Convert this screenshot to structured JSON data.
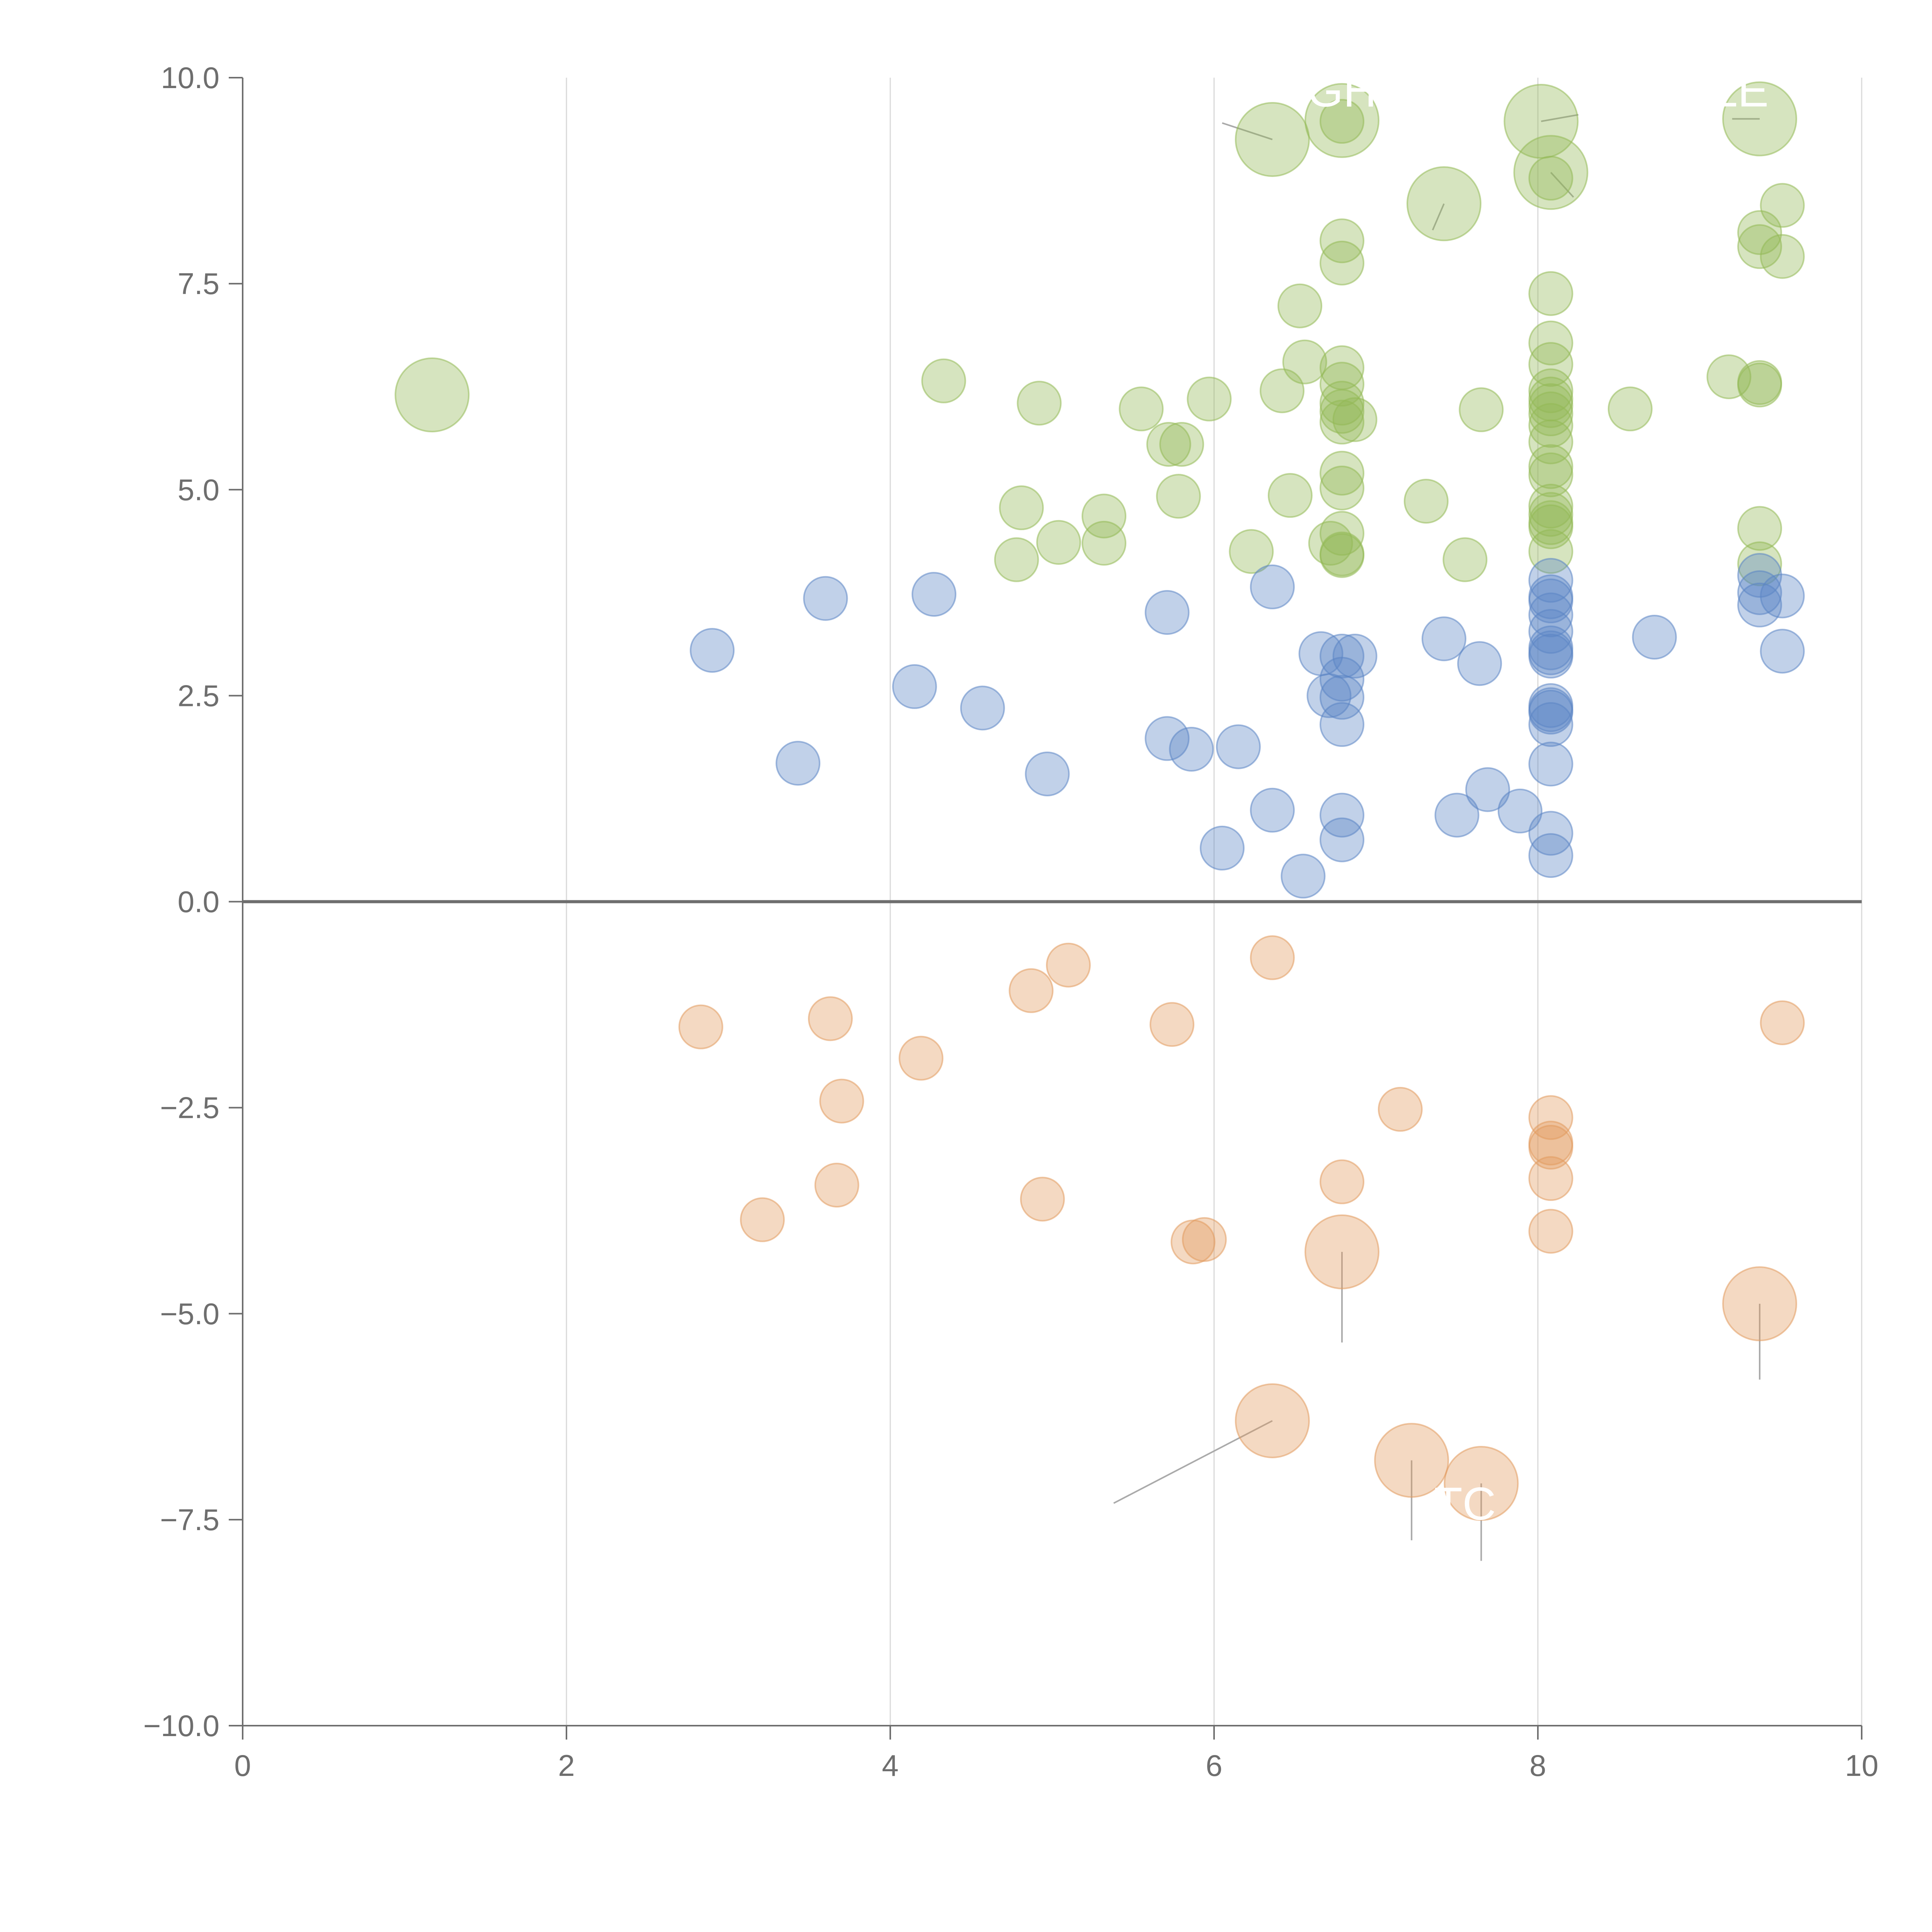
{
  "chart_data": {
    "type": "scatter",
    "title": "",
    "xlabel": "",
    "ylabel": "",
    "xlim": [
      0,
      10
    ],
    "ylim": [
      -10,
      10
    ],
    "x_ticks": [
      "0",
      "2",
      "4",
      "6",
      "8",
      "10"
    ],
    "y_ticks": [
      "10.0",
      "7.5",
      "5.0",
      "2.5",
      "0.0",
      "−2.5",
      "−5.0",
      "−7.5",
      "−10.0"
    ],
    "grid": "vertical lines at x ticks",
    "zero_line": 0,
    "colors": {
      "green": "#93b956",
      "blue": "#5b85c5",
      "orange": "#e29a5f",
      "axis": "#6e6e6e",
      "grid": "#d9d9d9",
      "leader": "#aaaaaa"
    },
    "series": [
      {
        "name": "green",
        "color": "#93b956",
        "points": [
          {
            "x": 1.17,
            "y": 6.15,
            "size": "large"
          },
          {
            "x": 4.33,
            "y": 6.32
          },
          {
            "x": 4.92,
            "y": 6.05
          },
          {
            "x": 5.55,
            "y": 5.98
          },
          {
            "x": 5.97,
            "y": 6.1
          },
          {
            "x": 5.72,
            "y": 5.55
          },
          {
            "x": 5.8,
            "y": 5.55
          },
          {
            "x": 4.81,
            "y": 4.78
          },
          {
            "x": 4.78,
            "y": 4.15
          },
          {
            "x": 5.04,
            "y": 4.36
          },
          {
            "x": 5.32,
            "y": 4.68
          },
          {
            "x": 5.32,
            "y": 4.35
          },
          {
            "x": 5.78,
            "y": 4.92
          },
          {
            "x": 6.23,
            "y": 4.25
          },
          {
            "x": 6.47,
            "y": 4.93
          },
          {
            "x": 6.42,
            "y": 6.2
          },
          {
            "x": 6.56,
            "y": 6.55
          },
          {
            "x": 6.53,
            "y": 7.23
          },
          {
            "x": 6.79,
            "y": 8.02
          },
          {
            "x": 6.79,
            "y": 7.75
          },
          {
            "x": 6.79,
            "y": 6.48
          },
          {
            "x": 6.79,
            "y": 6.28
          },
          {
            "x": 6.79,
            "y": 6.05
          },
          {
            "x": 6.79,
            "y": 5.95
          },
          {
            "x": 6.79,
            "y": 5.82
          },
          {
            "x": 6.87,
            "y": 5.85
          },
          {
            "x": 6.79,
            "y": 5.2
          },
          {
            "x": 6.79,
            "y": 5.02
          },
          {
            "x": 6.79,
            "y": 4.47
          },
          {
            "x": 6.72,
            "y": 4.35
          },
          {
            "x": 6.79,
            "y": 4.22
          },
          {
            "x": 6.79,
            "y": 4.2
          },
          {
            "x": 7.31,
            "y": 4.86
          },
          {
            "x": 7.55,
            "y": 4.15
          },
          {
            "x": 7.65,
            "y": 5.97
          },
          {
            "x": 8.08,
            "y": 7.38
          },
          {
            "x": 8.08,
            "y": 6.78
          },
          {
            "x": 8.08,
            "y": 6.52
          },
          {
            "x": 8.08,
            "y": 6.2
          },
          {
            "x": 8.08,
            "y": 6.1
          },
          {
            "x": 8.08,
            "y": 6.02
          },
          {
            "x": 8.08,
            "y": 5.92
          },
          {
            "x": 8.08,
            "y": 5.78
          },
          {
            "x": 8.08,
            "y": 5.58
          },
          {
            "x": 8.08,
            "y": 5.28
          },
          {
            "x": 8.08,
            "y": 5.18
          },
          {
            "x": 8.08,
            "y": 4.8
          },
          {
            "x": 8.08,
            "y": 4.7
          },
          {
            "x": 8.08,
            "y": 4.6
          },
          {
            "x": 8.08,
            "y": 4.55
          },
          {
            "x": 8.08,
            "y": 4.25
          },
          {
            "x": 8.08,
            "y": 8.78
          },
          {
            "x": 8.57,
            "y": 5.98
          },
          {
            "x": 9.18,
            "y": 6.37
          },
          {
            "x": 9.37,
            "y": 6.3
          },
          {
            "x": 9.37,
            "y": 6.27
          },
          {
            "x": 9.37,
            "y": 8.12
          },
          {
            "x": 9.37,
            "y": 7.95
          },
          {
            "x": 9.51,
            "y": 8.45
          },
          {
            "x": 9.51,
            "y": 7.83
          },
          {
            "x": 9.37,
            "y": 4.53
          },
          {
            "x": 9.37,
            "y": 4.1
          },
          {
            "x": 6.79,
            "y": 9.47
          },
          {
            "x": 6.36,
            "y": 9.25,
            "size": "large"
          },
          {
            "x": 6.79,
            "y": 9.48,
            "size": "large"
          },
          {
            "x": 7.42,
            "y": 8.47,
            "size": "large"
          },
          {
            "x": 8.02,
            "y": 9.47,
            "size": "large"
          },
          {
            "x": 8.08,
            "y": 8.85,
            "size": "large"
          },
          {
            "x": 9.37,
            "y": 9.5,
            "size": "large"
          }
        ]
      },
      {
        "name": "blue",
        "color": "#5b85c5",
        "points": [
          {
            "x": 2.9,
            "y": 3.05
          },
          {
            "x": 3.6,
            "y": 3.68
          },
          {
            "x": 4.27,
            "y": 3.73
          },
          {
            "x": 3.43,
            "y": 1.68
          },
          {
            "x": 4.15,
            "y": 2.61
          },
          {
            "x": 4.57,
            "y": 2.35
          },
          {
            "x": 4.97,
            "y": 1.55
          },
          {
            "x": 5.71,
            "y": 3.51
          },
          {
            "x": 5.71,
            "y": 1.98
          },
          {
            "x": 5.86,
            "y": 1.85
          },
          {
            "x": 6.15,
            "y": 1.88
          },
          {
            "x": 6.36,
            "y": 3.82
          },
          {
            "x": 6.05,
            "y": 0.65
          },
          {
            "x": 6.36,
            "y": 1.11
          },
          {
            "x": 6.55,
            "y": 0.31
          },
          {
            "x": 6.66,
            "y": 3.01
          },
          {
            "x": 6.79,
            "y": 2.98
          },
          {
            "x": 6.87,
            "y": 2.98
          },
          {
            "x": 6.79,
            "y": 2.7
          },
          {
            "x": 6.71,
            "y": 2.5
          },
          {
            "x": 6.79,
            "y": 2.48
          },
          {
            "x": 6.79,
            "y": 2.15
          },
          {
            "x": 6.79,
            "y": 1.05
          },
          {
            "x": 6.79,
            "y": 0.75
          },
          {
            "x": 7.42,
            "y": 3.19
          },
          {
            "x": 7.64,
            "y": 2.89
          },
          {
            "x": 7.5,
            "y": 1.05
          },
          {
            "x": 7.69,
            "y": 1.36
          },
          {
            "x": 7.89,
            "y": 1.1
          },
          {
            "x": 8.08,
            "y": 3.9
          },
          {
            "x": 8.08,
            "y": 3.7
          },
          {
            "x": 8.08,
            "y": 3.65
          },
          {
            "x": 8.08,
            "y": 3.48
          },
          {
            "x": 8.08,
            "y": 3.28
          },
          {
            "x": 8.08,
            "y": 3.08
          },
          {
            "x": 8.08,
            "y": 3.02
          },
          {
            "x": 8.08,
            "y": 2.98
          },
          {
            "x": 8.08,
            "y": 2.38
          },
          {
            "x": 8.08,
            "y": 2.33
          },
          {
            "x": 8.08,
            "y": 2.3
          },
          {
            "x": 8.08,
            "y": 2.15
          },
          {
            "x": 8.08,
            "y": 1.67
          },
          {
            "x": 8.08,
            "y": 0.83
          },
          {
            "x": 8.08,
            "y": 0.56
          },
          {
            "x": 8.72,
            "y": 3.21
          },
          {
            "x": 9.37,
            "y": 3.96
          },
          {
            "x": 9.37,
            "y": 3.75
          },
          {
            "x": 9.37,
            "y": 3.6
          },
          {
            "x": 9.51,
            "y": 3.71
          },
          {
            "x": 9.51,
            "y": 3.04
          }
        ]
      },
      {
        "name": "orange",
        "color": "#e29a5f",
        "points": [
          {
            "x": 2.83,
            "y": -1.52
          },
          {
            "x": 3.63,
            "y": -1.42
          },
          {
            "x": 3.7,
            "y": -2.42
          },
          {
            "x": 3.67,
            "y": -3.44
          },
          {
            "x": 3.21,
            "y": -3.86
          },
          {
            "x": 4.19,
            "y": -1.9
          },
          {
            "x": 4.87,
            "y": -1.08
          },
          {
            "x": 5.1,
            "y": -0.77
          },
          {
            "x": 4.94,
            "y": -3.61
          },
          {
            "x": 5.74,
            "y": -1.49
          },
          {
            "x": 5.87,
            "y": -4.13
          },
          {
            "x": 5.94,
            "y": -4.1
          },
          {
            "x": 6.36,
            "y": -0.68
          },
          {
            "x": 6.79,
            "y": -3.4
          },
          {
            "x": 7.15,
            "y": -2.52
          },
          {
            "x": 8.08,
            "y": -2.62
          },
          {
            "x": 8.08,
            "y": -2.93
          },
          {
            "x": 8.08,
            "y": -2.98
          },
          {
            "x": 8.08,
            "y": -3.36
          },
          {
            "x": 8.08,
            "y": -4.0
          },
          {
            "x": 9.51,
            "y": -1.47
          },
          {
            "x": 6.79,
            "y": -4.25,
            "size": "large"
          },
          {
            "x": 9.37,
            "y": -4.88,
            "size": "large"
          },
          {
            "x": 6.36,
            "y": -6.3,
            "size": "large"
          },
          {
            "x": 7.22,
            "y": -6.78,
            "size": "large"
          },
          {
            "x": 7.65,
            "y": -7.06,
            "size": "large"
          }
        ]
      }
    ],
    "annotations": [
      {
        "text": "IGH",
        "x": 6.75,
        "y": 9.65
      },
      {
        "text": "LE",
        "x": 9.25,
        "y": 9.65
      },
      {
        "text": "TC",
        "x": 7.55,
        "y": -7.5
      }
    ]
  }
}
